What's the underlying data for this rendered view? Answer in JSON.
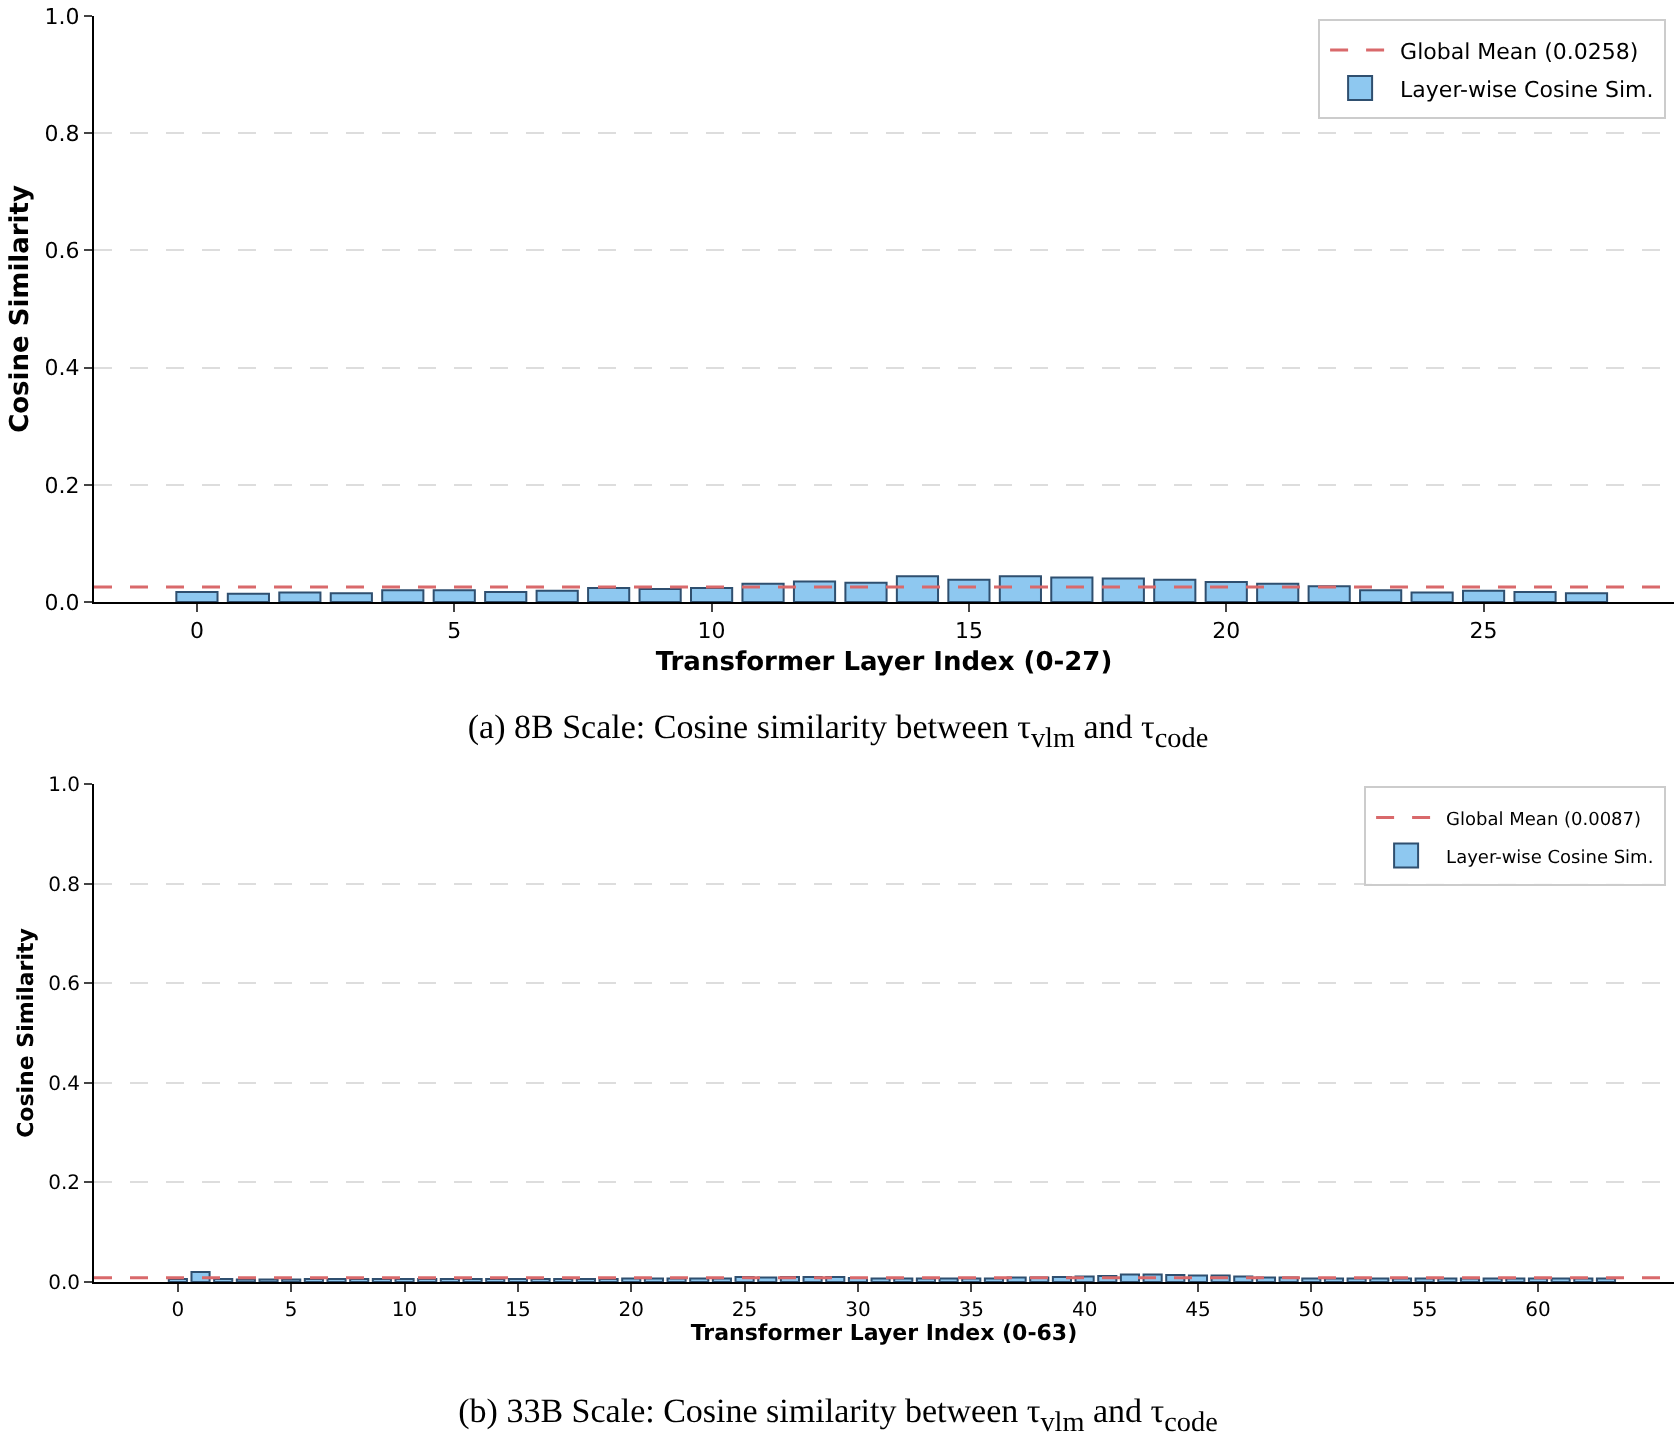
{
  "chart_data": [
    {
      "type": "bar",
      "xlabel": "Transformer Layer Index (0-27)",
      "ylabel": "Cosine Similarity",
      "x": [
        0,
        1,
        2,
        3,
        4,
        5,
        6,
        7,
        8,
        9,
        10,
        11,
        12,
        13,
        14,
        15,
        16,
        17,
        18,
        19,
        20,
        21,
        22,
        23,
        24,
        25,
        26,
        27
      ],
      "series": [
        {
          "name": "Layer-wise Cosine Sim.",
          "color": "#8ec8f0",
          "values": [
            0.017,
            0.014,
            0.016,
            0.015,
            0.02,
            0.02,
            0.017,
            0.019,
            0.024,
            0.022,
            0.024,
            0.031,
            0.035,
            0.033,
            0.044,
            0.038,
            0.044,
            0.042,
            0.04,
            0.038,
            0.034,
            0.031,
            0.027,
            0.02,
            0.016,
            0.019,
            0.017,
            0.015
          ]
        }
      ],
      "xlim": [
        -2,
        28.7
      ],
      "xticks": [
        0,
        5,
        10,
        15,
        20,
        25
      ],
      "ylim": [
        0,
        1
      ],
      "yticks": [
        {
          "value": 0,
          "label": "0.0"
        },
        {
          "value": 0.2,
          "label": "0.2"
        },
        {
          "value": 0.4,
          "label": "0.4"
        },
        {
          "value": 0.6,
          "label": "0.6"
        },
        {
          "value": 0.8,
          "label": "0.8"
        },
        {
          "value": 1,
          "label": "1.0"
        }
      ],
      "ref_lines": [
        {
          "axis": "y",
          "value": 0.0258,
          "label": "Global Mean (0.0258)",
          "color": "#d9696b",
          "line_style": "dashed"
        }
      ],
      "grid": "y",
      "legend": "top right",
      "annotations": [
        "(a) 8B Scale: Cosine similarity between τ$_{vlm}$ and τ$_{code}$"
      ]
    },
    {
      "type": "bar",
      "xlabel": "Transformer Layer Index (0-63)",
      "ylabel": "Cosine Similarity",
      "x": [
        0,
        1,
        2,
        3,
        4,
        5,
        6,
        7,
        8,
        9,
        10,
        11,
        12,
        13,
        14,
        15,
        16,
        17,
        18,
        19,
        20,
        21,
        22,
        23,
        24,
        25,
        26,
        27,
        28,
        29,
        30,
        31,
        32,
        33,
        34,
        35,
        36,
        37,
        38,
        39,
        40,
        41,
        42,
        43,
        44,
        45,
        46,
        47,
        48,
        49,
        50,
        51,
        52,
        53,
        54,
        55,
        56,
        57,
        58,
        59,
        60,
        61,
        62,
        63
      ],
      "series": [
        {
          "name": "Layer-wise Cosine Sim.",
          "color": "#8ec8f0",
          "values": [
            0.006,
            0.02,
            0.006,
            0.005,
            0.005,
            0.005,
            0.006,
            0.006,
            0.006,
            0.006,
            0.006,
            0.006,
            0.006,
            0.006,
            0.006,
            0.006,
            0.006,
            0.006,
            0.006,
            0.006,
            0.007,
            0.007,
            0.007,
            0.007,
            0.007,
            0.01,
            0.009,
            0.01,
            0.01,
            0.01,
            0.008,
            0.007,
            0.007,
            0.007,
            0.007,
            0.007,
            0.007,
            0.009,
            0.009,
            0.01,
            0.011,
            0.012,
            0.015,
            0.015,
            0.014,
            0.013,
            0.013,
            0.011,
            0.009,
            0.009,
            0.007,
            0.007,
            0.007,
            0.007,
            0.007,
            0.007,
            0.007,
            0.007,
            0.007,
            0.007,
            0.007,
            0.007,
            0.007,
            0.007
          ]
        }
      ],
      "xlim": [
        -3.7,
        66
      ],
      "xticks": [
        0,
        5,
        10,
        15,
        20,
        25,
        30,
        35,
        40,
        45,
        50,
        55,
        60
      ],
      "ylim": [
        0,
        1
      ],
      "yticks": [
        {
          "value": 0,
          "label": "0.0"
        },
        {
          "value": 0.2,
          "label": "0.2"
        },
        {
          "value": 0.4,
          "label": "0.4"
        },
        {
          "value": 0.6,
          "label": "0.6"
        },
        {
          "value": 0.8,
          "label": "0.8"
        },
        {
          "value": 1,
          "label": "1.0"
        }
      ],
      "ref_lines": [
        {
          "axis": "y",
          "value": 0.0087,
          "label": "Global Mean (0.0087)",
          "color": "#d9696b",
          "line_style": "dashed"
        }
      ],
      "grid": "y",
      "legend": "top right",
      "annotations": [
        "(b) 33B Scale: Cosine similarity between τ$_{vlm}$ and τ$_{code}$"
      ]
    }
  ]
}
